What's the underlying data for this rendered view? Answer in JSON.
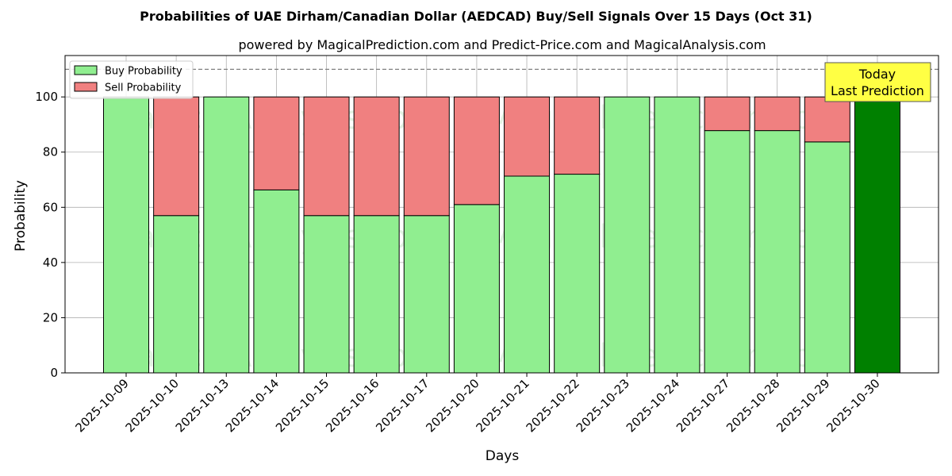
{
  "chart_data": {
    "type": "bar",
    "stacked": true,
    "title": "Probabilities of UAE Dirham/Canadian Dollar (AEDCAD) Buy/Sell Signals Over 15 Days (Oct 31)",
    "subtitle": "powered by MagicalPrediction.com and Predict-Price.com and MagicalAnalysis.com",
    "xlabel": "Days",
    "ylabel": "Probability",
    "ylim": [
      0,
      115
    ],
    "yticks": [
      0,
      20,
      40,
      60,
      80,
      100
    ],
    "grid": true,
    "legend_position": "top-left",
    "reference_line": 110,
    "categories": [
      "2025-10-09",
      "2025-10-10",
      "2025-10-13",
      "2025-10-14",
      "2025-10-15",
      "2025-10-16",
      "2025-10-17",
      "2025-10-20",
      "2025-10-21",
      "2025-10-22",
      "2025-10-23",
      "2025-10-24",
      "2025-10-27",
      "2025-10-28",
      "2025-10-29",
      "2025-10-30"
    ],
    "series": [
      {
        "name": "Buy Probability",
        "color": "#90ee90",
        "values": [
          100,
          57,
          100,
          66.3,
          57,
          57,
          57,
          61,
          71.3,
          72,
          100,
          100,
          87.8,
          87.8,
          83.7,
          100
        ]
      },
      {
        "name": "Sell Probability",
        "color": "#f08080",
        "values": [
          0,
          43,
          0,
          33.7,
          43,
          43,
          43,
          39,
          28.7,
          28,
          0,
          0,
          12.2,
          12.2,
          16.3,
          0
        ]
      }
    ],
    "highlight": {
      "category": "2025-10-30",
      "color": "#008000"
    },
    "annotation": {
      "lines": [
        "Today",
        "Last Prediction"
      ],
      "background": "#ffff44"
    },
    "watermarks": [
      "MagicalAnalysis.com",
      "MagicalPrediction.com"
    ]
  }
}
